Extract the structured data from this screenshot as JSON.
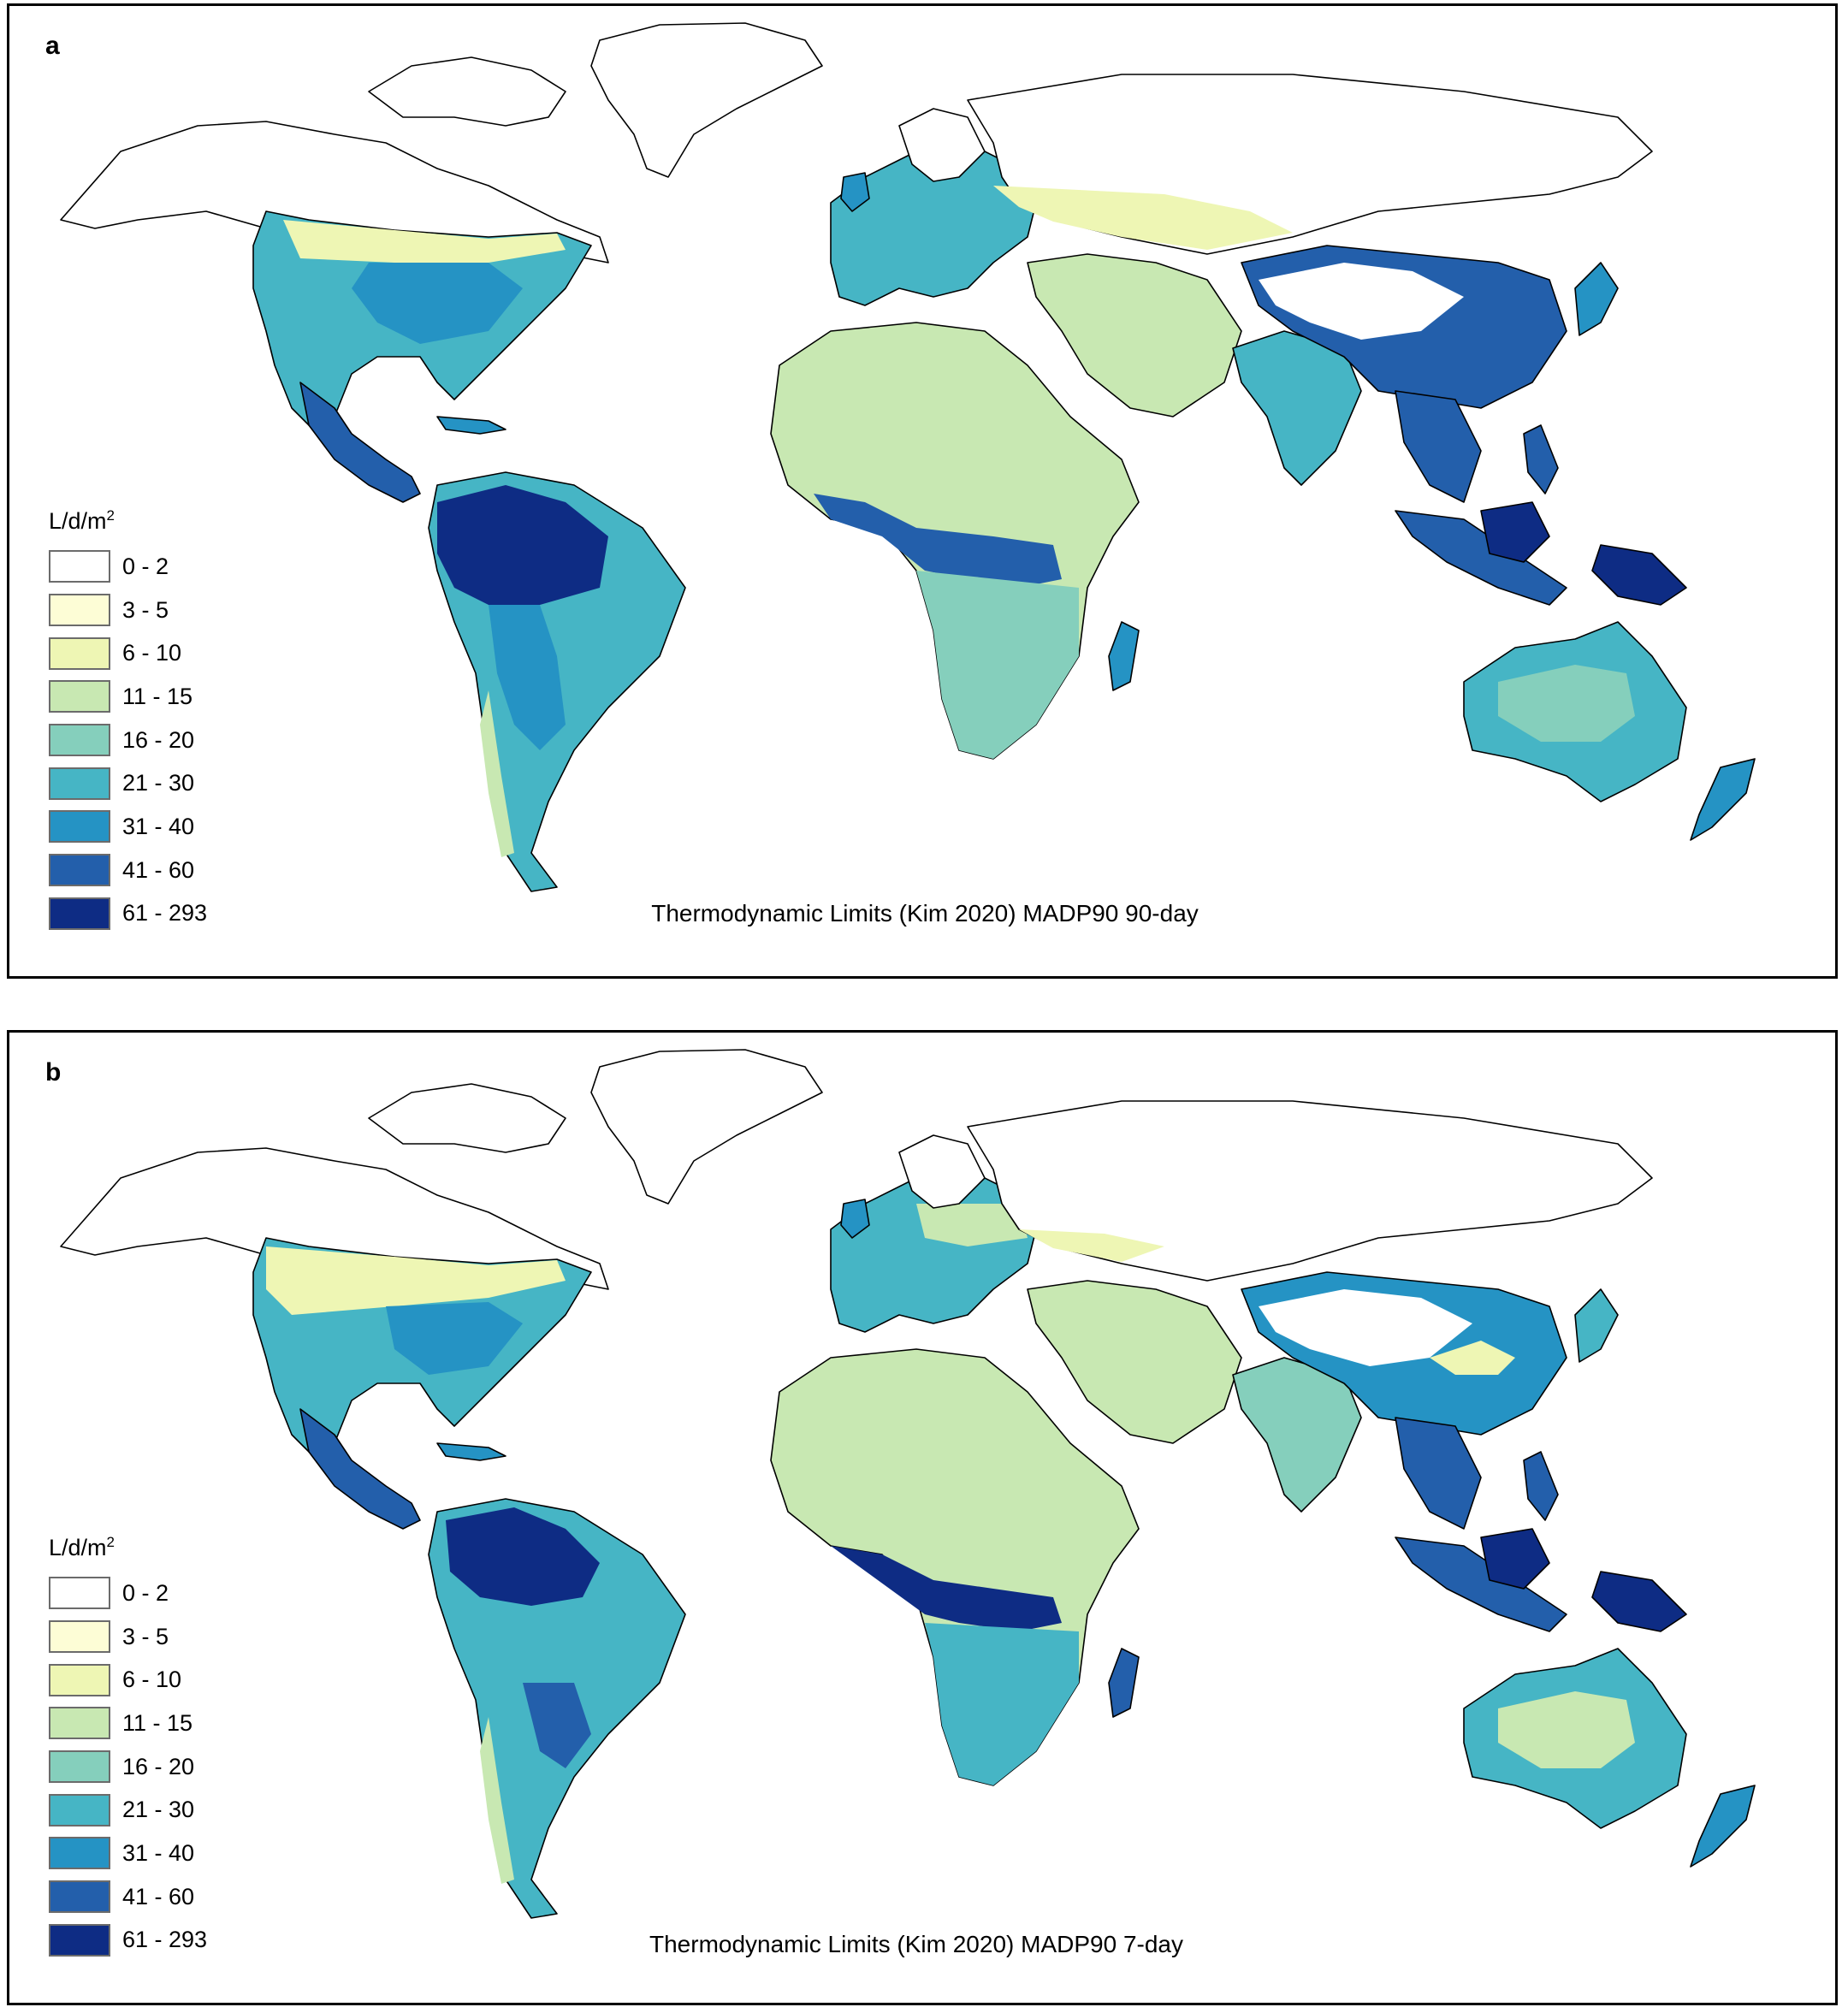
{
  "legend": {
    "unit_main": "L/d/m",
    "unit_sup": "2",
    "classes": [
      {
        "label": "0 - 2",
        "color": "#ffffff"
      },
      {
        "label": "3 - 5",
        "color": "#fdfdd6"
      },
      {
        "label": "6 - 10",
        "color": "#eef6b4"
      },
      {
        "label": "11 - 15",
        "color": "#c8e8b2"
      },
      {
        "label": "16 - 20",
        "color": "#85cfbc"
      },
      {
        "label": "21 - 30",
        "color": "#46b5c5"
      },
      {
        "label": "31 - 40",
        "color": "#2593c4"
      },
      {
        "label": "41 - 60",
        "color": "#235fab"
      },
      {
        "label": "61 - 293",
        "color": "#0e2c84"
      }
    ]
  },
  "panels": [
    {
      "letter": "a",
      "caption": "Thermodynamic Limits (Kim 2020) MADP90 90-day"
    },
    {
      "letter": "b",
      "caption": "Thermodynamic Limits (Kim 2020) MADP90 7-day"
    }
  ]
}
